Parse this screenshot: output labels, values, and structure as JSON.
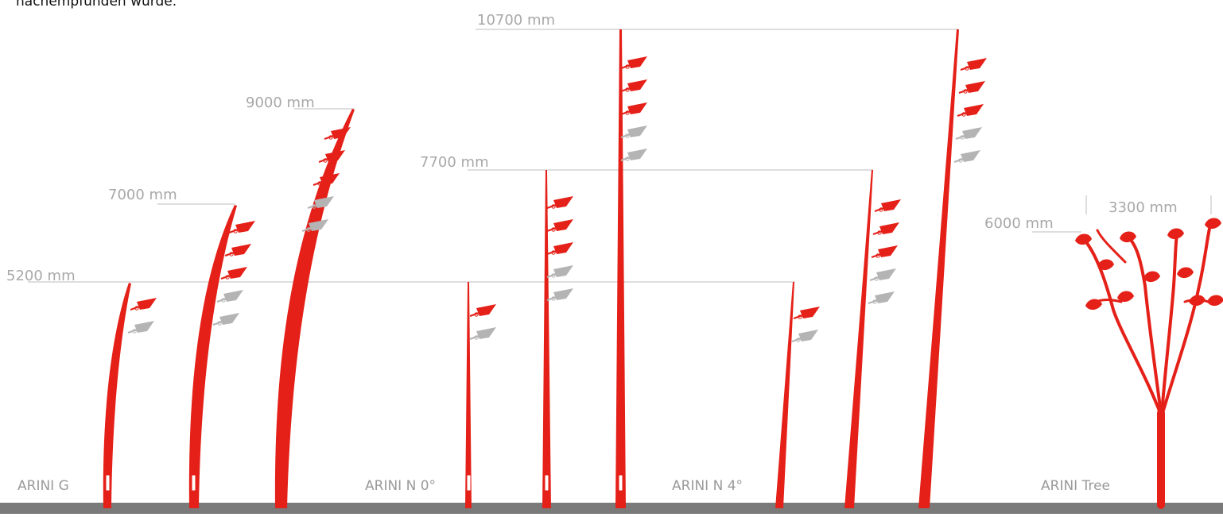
{
  "intro_text": "nachempfunden wurde.",
  "colors": {
    "pole": "#e42018",
    "spot_active": "#e42018",
    "spot_inactive": "#b4b4b4",
    "guide": "#bdbdbd",
    "ground": "#7a7a7a",
    "label": "#a0a0a0"
  },
  "dimensions": {
    "d5200": "5200 mm",
    "d7000": "7000 mm",
    "d9000": "9000 mm",
    "d7700": "7700 mm",
    "d10700": "10700 mm",
    "d6000": "6000 mm",
    "d3300": "3300 mm"
  },
  "families": {
    "g": "ARINI G",
    "n0": "ARINI N 0°",
    "n4": "ARINI N 4°",
    "tree": "ARINI Tree"
  },
  "poles": [
    {
      "family": "ARINI G",
      "height": "5200 mm",
      "spotlights_red": 1,
      "spotlights_grey": 1
    },
    {
      "family": "ARINI G",
      "height": "7000 mm",
      "spotlights_red": 3,
      "spotlights_grey": 2
    },
    {
      "family": "ARINI G",
      "height": "9000 mm",
      "spotlights_red": 3,
      "spotlights_grey": 2
    },
    {
      "family": "ARINI N 0°",
      "height": "5200 mm",
      "spotlights_red": 1,
      "spotlights_grey": 1
    },
    {
      "family": "ARINI N 0°",
      "height": "7700 mm",
      "spotlights_red": 3,
      "spotlights_grey": 2
    },
    {
      "family": "ARINI N 0°",
      "height": "10700 mm",
      "spotlights_red": 3,
      "spotlights_grey": 2
    },
    {
      "family": "ARINI N 4°",
      "height": "5200 mm",
      "spotlights_red": 1,
      "spotlights_grey": 1
    },
    {
      "family": "ARINI N 4°",
      "height": "7700 mm",
      "spotlights_red": 3,
      "spotlights_grey": 2
    },
    {
      "family": "ARINI N 4°",
      "height": "10700 mm",
      "spotlights_red": 3,
      "spotlights_grey": 2
    },
    {
      "family": "ARINI Tree",
      "height": "6000 mm",
      "width": "3300 mm"
    }
  ]
}
